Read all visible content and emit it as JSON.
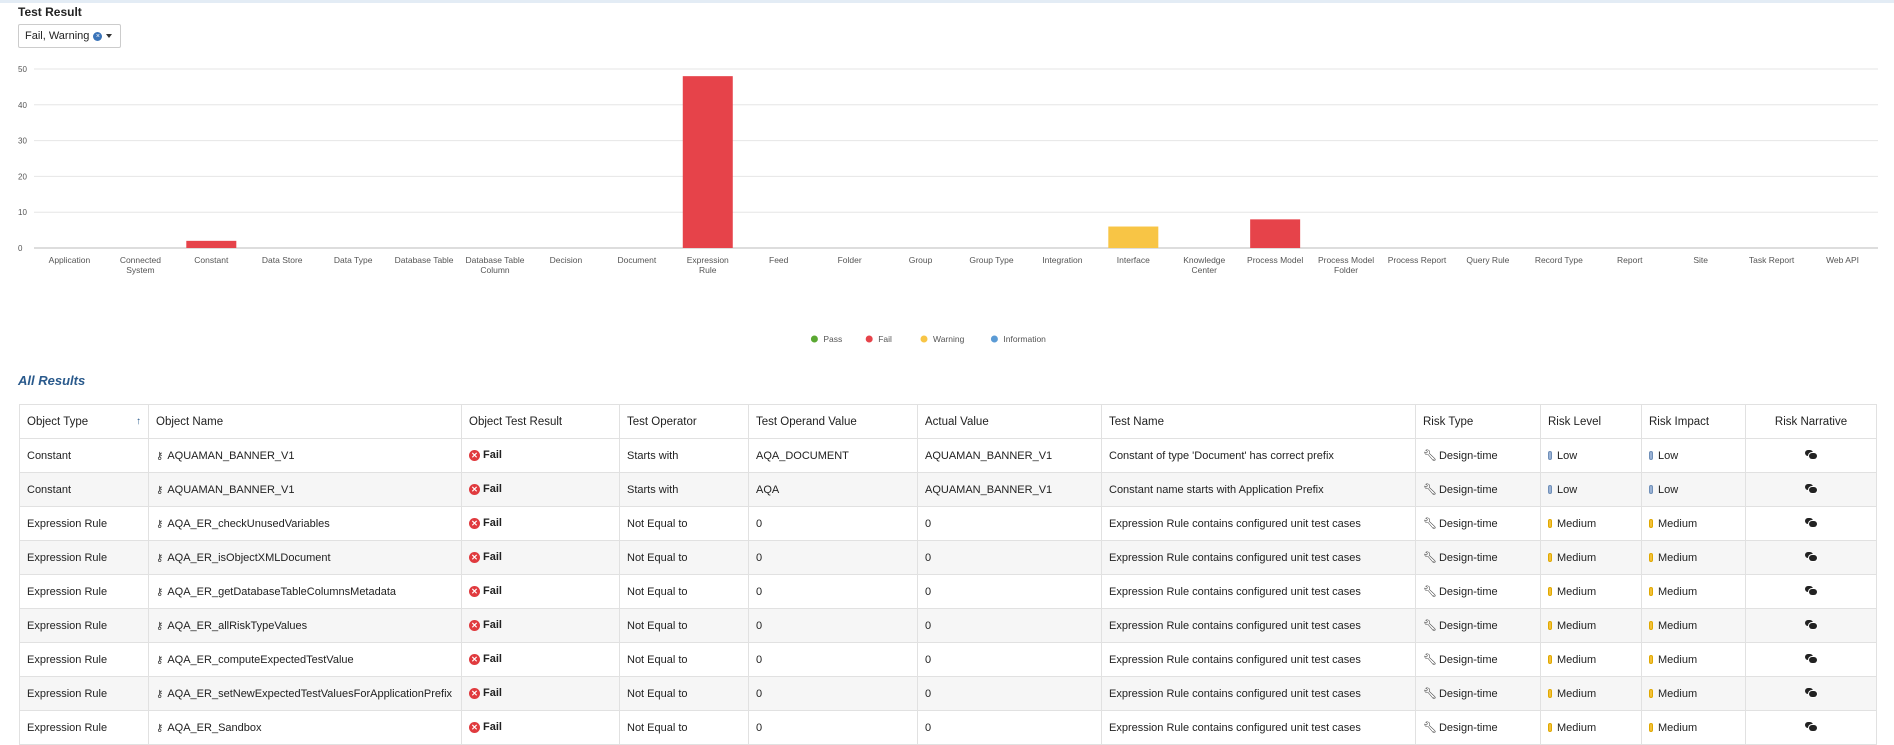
{
  "filter": {
    "label": "Test Result",
    "selected": "Fail, Warning"
  },
  "chart_data": {
    "type": "bar",
    "categories": [
      "Application",
      "Connected System",
      "Constant",
      "Data Store",
      "Data Type",
      "Database Table",
      "Database Table Column",
      "Decision",
      "Document",
      "Expression Rule",
      "Feed",
      "Folder",
      "Group",
      "Group Type",
      "Integration",
      "Interface",
      "Knowledge Center",
      "Process Model",
      "Process Model Folder",
      "Process Report",
      "Query Rule",
      "Record Type",
      "Report",
      "Site",
      "Task Report",
      "Web API"
    ],
    "series": [
      {
        "name": "Pass",
        "color": "#5aa832",
        "values": [
          0,
          0,
          0,
          0,
          0,
          0,
          0,
          0,
          0,
          0,
          0,
          0,
          0,
          0,
          0,
          0,
          0,
          0,
          0,
          0,
          0,
          0,
          0,
          0,
          0,
          0
        ]
      },
      {
        "name": "Fail",
        "color": "#e6434a",
        "values": [
          0,
          0,
          2,
          0,
          0,
          0,
          0,
          0,
          0,
          48,
          0,
          0,
          0,
          0,
          0,
          0,
          0,
          8,
          0,
          0,
          0,
          0,
          0,
          0,
          0,
          0
        ]
      },
      {
        "name": "Warning",
        "color": "#f8c545",
        "values": [
          0,
          0,
          0,
          0,
          0,
          0,
          0,
          0,
          0,
          0,
          0,
          0,
          0,
          0,
          0,
          6,
          0,
          0,
          0,
          0,
          0,
          0,
          0,
          0,
          0,
          0
        ]
      },
      {
        "name": "Information",
        "color": "#5b9bd5",
        "values": [
          0,
          0,
          0,
          0,
          0,
          0,
          0,
          0,
          0,
          0,
          0,
          0,
          0,
          0,
          0,
          0,
          0,
          0,
          0,
          0,
          0,
          0,
          0,
          0,
          0,
          0
        ]
      }
    ],
    "yticks": [
      0,
      10,
      20,
      30,
      40,
      50
    ],
    "ylim": [
      0,
      50
    ],
    "grid": true,
    "legend_position": "bottom"
  },
  "results": {
    "title": "All Results",
    "columns": [
      "Object Type",
      "Object Name",
      "Object Test Result",
      "Test Operator",
      "Test Operand Value",
      "Actual Value",
      "Test Name",
      "Risk Type",
      "Risk Level",
      "Risk Impact",
      "Risk Narrative"
    ],
    "sort_indicator": "↑",
    "rows": [
      {
        "type": "Constant",
        "name": "AQUAMAN_BANNER_V1",
        "result": "Fail",
        "operator": "Starts with",
        "operand": "AQA_DOCUMENT",
        "actual": "AQUAMAN_BANNER_V1",
        "test_name": "Constant of type 'Document' has correct prefix",
        "risk_type": "Design-time",
        "risk_level": "Low",
        "risk_impact": "Low"
      },
      {
        "type": "Constant",
        "name": "AQUAMAN_BANNER_V1",
        "result": "Fail",
        "operator": "Starts with",
        "operand": "AQA",
        "actual": "AQUAMAN_BANNER_V1",
        "test_name": "Constant name starts with Application Prefix",
        "risk_type": "Design-time",
        "risk_level": "Low",
        "risk_impact": "Low"
      },
      {
        "type": "Expression Rule",
        "name": "AQA_ER_checkUnusedVariables",
        "result": "Fail",
        "operator": "Not Equal to",
        "operand": "0",
        "actual": "0",
        "test_name": "Expression Rule contains configured unit test cases",
        "risk_type": "Design-time",
        "risk_level": "Medium",
        "risk_impact": "Medium"
      },
      {
        "type": "Expression Rule",
        "name": "AQA_ER_isObjectXMLDocument",
        "result": "Fail",
        "operator": "Not Equal to",
        "operand": "0",
        "actual": "0",
        "test_name": "Expression Rule contains configured unit test cases",
        "risk_type": "Design-time",
        "risk_level": "Medium",
        "risk_impact": "Medium"
      },
      {
        "type": "Expression Rule",
        "name": "AQA_ER_getDatabaseTableColumnsMetadata",
        "result": "Fail",
        "operator": "Not Equal to",
        "operand": "0",
        "actual": "0",
        "test_name": "Expression Rule contains configured unit test cases",
        "risk_type": "Design-time",
        "risk_level": "Medium",
        "risk_impact": "Medium"
      },
      {
        "type": "Expression Rule",
        "name": "AQA_ER_allRiskTypeValues",
        "result": "Fail",
        "operator": "Not Equal to",
        "operand": "0",
        "actual": "0",
        "test_name": "Expression Rule contains configured unit test cases",
        "risk_type": "Design-time",
        "risk_level": "Medium",
        "risk_impact": "Medium"
      },
      {
        "type": "Expression Rule",
        "name": "AQA_ER_computeExpectedTestValue",
        "result": "Fail",
        "operator": "Not Equal to",
        "operand": "0",
        "actual": "0",
        "test_name": "Expression Rule contains configured unit test cases",
        "risk_type": "Design-time",
        "risk_level": "Medium",
        "risk_impact": "Medium"
      },
      {
        "type": "Expression Rule",
        "name": "AQA_ER_setNewExpectedTestValuesForApplicationPrefix",
        "result": "Fail",
        "operator": "Not Equal to",
        "operand": "0",
        "actual": "0",
        "test_name": "Expression Rule contains configured unit test cases",
        "risk_type": "Design-time",
        "risk_level": "Medium",
        "risk_impact": "Medium"
      },
      {
        "type": "Expression Rule",
        "name": "AQA_ER_Sandbox",
        "result": "Fail",
        "operator": "Not Equal to",
        "operand": "0",
        "actual": "0",
        "test_name": "Expression Rule contains configured unit test cases",
        "risk_type": "Design-time",
        "risk_level": "Medium",
        "risk_impact": "Medium"
      }
    ]
  }
}
